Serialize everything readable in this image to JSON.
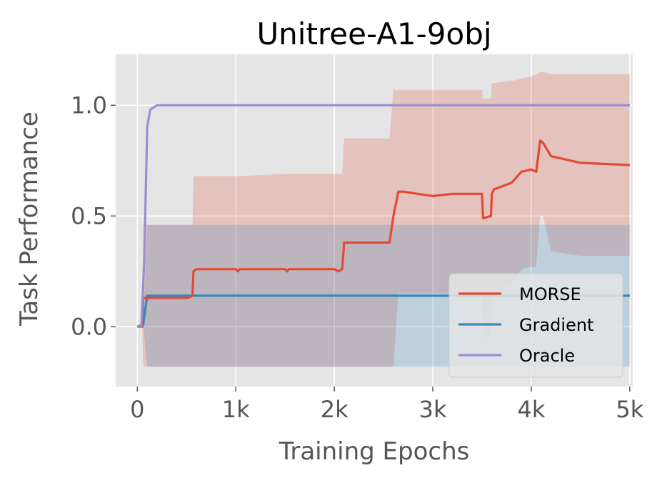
{
  "chart_data": {
    "type": "line",
    "title": "Unitree-A1-9obj",
    "xlabel": "Training Epochs",
    "ylabel": "Task Performance",
    "xlim": [
      -220,
      5030
    ],
    "ylim": [
      -0.27,
      1.23
    ],
    "x_ticks": [
      0,
      1000,
      2000,
      3000,
      4000,
      5000
    ],
    "x_tick_labels": [
      "0",
      "1k",
      "2k",
      "3k",
      "4k",
      "5k"
    ],
    "y_ticks": [
      0.0,
      0.5,
      1.0
    ],
    "y_tick_labels": [
      "0.0",
      "0.5",
      "1.0"
    ],
    "grid": true,
    "legend_position": "lower-right",
    "colors": {
      "plot_background": "#e5e5e5",
      "grid": "#ffffff",
      "MORSE": "#e24a33",
      "Gradient": "#348abd",
      "Oracle": "#988ed5"
    },
    "series": [
      {
        "name": "MORSE",
        "color": "#e24a33",
        "x": [
          0,
          50,
          60,
          510,
          560,
          570,
          600,
          1000,
          1020,
          1040,
          1500,
          1520,
          1540,
          2000,
          2040,
          2080,
          2100,
          2500,
          2560,
          2600,
          2650,
          2700,
          3000,
          3200,
          3500,
          3510,
          3590,
          3600,
          3620,
          3800,
          3900,
          4000,
          4050,
          4090,
          4120,
          4200,
          4500,
          5000
        ],
        "y": [
          0.0,
          0.0,
          0.13,
          0.13,
          0.14,
          0.25,
          0.26,
          0.26,
          0.25,
          0.26,
          0.26,
          0.25,
          0.26,
          0.26,
          0.25,
          0.26,
          0.38,
          0.38,
          0.38,
          0.5,
          0.61,
          0.61,
          0.59,
          0.6,
          0.6,
          0.49,
          0.5,
          0.6,
          0.62,
          0.65,
          0.7,
          0.71,
          0.7,
          0.84,
          0.83,
          0.77,
          0.74,
          0.73
        ],
        "band_upper": [
          0.0,
          0.0,
          0.46,
          0.46,
          0.46,
          0.68,
          0.68,
          0.68,
          0.68,
          0.68,
          0.69,
          0.69,
          0.69,
          0.69,
          0.69,
          0.69,
          0.85,
          0.85,
          0.85,
          1.07,
          1.07,
          1.07,
          1.07,
          1.07,
          1.07,
          1.03,
          1.03,
          1.1,
          1.1,
          1.11,
          1.12,
          1.13,
          1.14,
          1.15,
          1.15,
          1.14,
          1.14,
          1.14
        ],
        "band_lower": [
          0.0,
          0.0,
          -0.18,
          -0.18,
          -0.18,
          -0.18,
          -0.18,
          -0.18,
          -0.18,
          -0.18,
          -0.18,
          -0.18,
          -0.18,
          -0.18,
          -0.18,
          -0.18,
          -0.18,
          -0.18,
          -0.18,
          -0.18,
          0.15,
          0.15,
          0.15,
          0.15,
          0.15,
          -0.05,
          -0.05,
          0.14,
          0.14,
          0.19,
          0.26,
          0.27,
          0.27,
          0.5,
          0.5,
          0.34,
          0.32,
          0.32
        ]
      },
      {
        "name": "Gradient",
        "color": "#348abd",
        "x": [
          0,
          60,
          100,
          130,
          1000,
          2000,
          3000,
          4000,
          5000
        ],
        "y": [
          0.0,
          0.01,
          0.14,
          0.14,
          0.14,
          0.14,
          0.14,
          0.14,
          0.14
        ],
        "band_upper": [
          0.0,
          0.01,
          0.46,
          0.46,
          0.46,
          0.46,
          0.46,
          0.46,
          0.46
        ],
        "band_lower": [
          0.0,
          0.01,
          -0.18,
          -0.18,
          -0.18,
          -0.18,
          -0.18,
          -0.18,
          -0.18
        ]
      },
      {
        "name": "Oracle",
        "color": "#988ed5",
        "x": [
          0,
          40,
          70,
          100,
          130,
          200,
          1000,
          2000,
          3000,
          3500,
          4000,
          5000
        ],
        "y": [
          0.0,
          0.0,
          0.3,
          0.9,
          0.98,
          1.0,
          1.0,
          1.0,
          1.0,
          1.0,
          1.0,
          1.0
        ]
      }
    ]
  }
}
